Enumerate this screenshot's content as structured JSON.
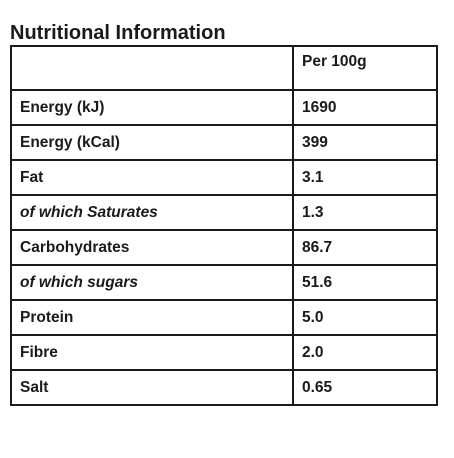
{
  "title": "Nutritional Information",
  "table": {
    "header": {
      "nutrient": "",
      "per_100g": "Per 100g"
    },
    "rows": [
      {
        "nutrient": "Energy (kJ)",
        "value": "1690",
        "italic": false
      },
      {
        "nutrient": "Energy (kCal)",
        "value": "399",
        "italic": false
      },
      {
        "nutrient": "Fat",
        "value": "3.1",
        "italic": false
      },
      {
        "nutrient": "of which Saturates",
        "value": "1.3",
        "italic": true
      },
      {
        "nutrient": "Carbohydrates",
        "value": "86.7",
        "italic": false
      },
      {
        "nutrient": "of which sugars",
        "value": "51.6",
        "italic": true
      },
      {
        "nutrient": "Protein",
        "value": "5.0",
        "italic": false
      },
      {
        "nutrient": "Fibre",
        "value": "2.0",
        "italic": false
      },
      {
        "nutrient": "Salt",
        "value": "0.65",
        "italic": false
      }
    ]
  }
}
